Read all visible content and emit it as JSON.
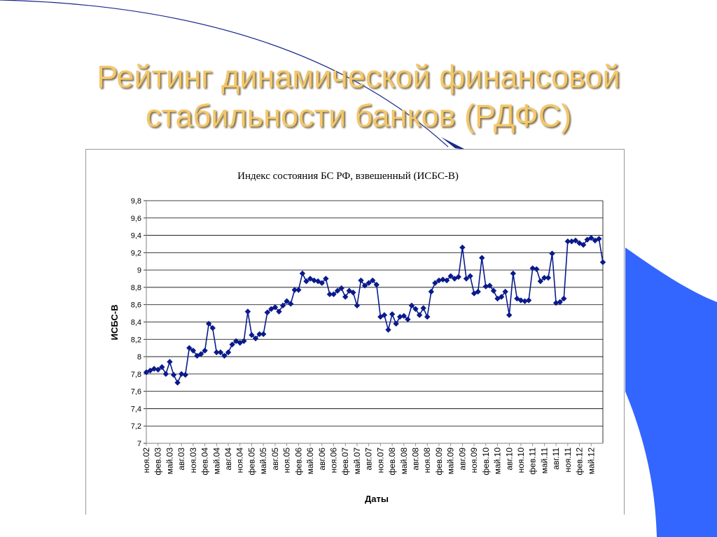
{
  "slide": {
    "title_line1": "Рейтинг динамической финансовой",
    "title_line2": "стабильности банков (РДФС)"
  },
  "colors": {
    "title": "#f3c76b",
    "accent_blue": "#3366ff",
    "series": "#0a1a8c"
  },
  "chart_data": {
    "type": "line",
    "title": "Индекс состояния БС РФ, взвешенный (ИСБС-В)",
    "xlabel": "Даты",
    "ylabel": "ИСБС-В",
    "ylim": [
      7,
      9.8
    ],
    "yticks": [
      "7",
      "7,2",
      "7,4",
      "7,6",
      "7,8",
      "8",
      "8,2",
      "8,4",
      "8,6",
      "8,8",
      "9",
      "9,2",
      "9,4",
      "9,6",
      "9,8"
    ],
    "ytick_values": [
      7,
      7.2,
      7.4,
      7.6,
      7.8,
      8,
      8.2,
      8.4,
      8.6,
      8.8,
      9,
      9.2,
      9.4,
      9.6,
      9.8
    ],
    "xticks": [
      "ноя.02",
      "фев.03",
      "май.03",
      "авг.03",
      "ноя.03",
      "фев.04",
      "май.04",
      "авг.04",
      "ноя.04",
      "фев.05",
      "май.05",
      "авг.05",
      "ноя.05",
      "фев.06",
      "май.06",
      "авг.06",
      "ноя.06",
      "фев.07",
      "май.07",
      "авг.07",
      "ноя.07",
      "фев.08",
      "май.08",
      "авг.08",
      "ноя.08",
      "фев.09",
      "май.09",
      "авг.09",
      "ноя.09",
      "фев.10",
      "май.10",
      "авг.10",
      "ноя.10",
      "фев.11",
      "май.11",
      "авг.11",
      "ноя.11",
      "фев.12",
      "май.12"
    ],
    "grid": true,
    "legend": "none",
    "marker": "diamond",
    "series": [
      {
        "values": [
          7.82,
          7.84,
          7.86,
          7.85,
          7.88,
          7.8,
          7.94,
          7.79,
          7.7,
          7.8,
          7.79,
          8.1,
          8.07,
          8.01,
          8.03,
          8.07,
          8.38,
          8.33,
          8.05,
          8.05,
          8.01,
          8.05,
          8.14,
          8.18,
          8.16,
          8.18,
          8.52,
          8.25,
          8.21,
          8.26,
          8.26,
          8.51,
          8.55,
          8.57,
          8.52,
          8.59,
          8.64,
          8.61,
          8.77,
          8.77,
          8.96,
          8.87,
          8.9,
          8.88,
          8.87,
          8.85,
          8.9,
          8.72,
          8.72,
          8.76,
          8.79,
          8.69,
          8.76,
          8.74,
          8.59,
          8.88,
          8.82,
          8.85,
          8.88,
          8.83,
          8.46,
          8.48,
          8.31,
          8.49,
          8.38,
          8.46,
          8.47,
          8.43,
          8.59,
          8.55,
          8.48,
          8.56,
          8.46,
          8.75,
          8.85,
          8.88,
          8.89,
          8.88,
          8.93,
          8.9,
          8.92,
          9.26,
          8.9,
          8.93,
          8.73,
          8.75,
          9.14,
          8.81,
          8.82,
          8.76,
          8.67,
          8.69,
          8.75,
          8.48,
          8.96,
          8.67,
          8.65,
          8.64,
          8.65,
          9.02,
          9.01,
          8.87,
          8.91,
          8.91,
          9.19,
          8.62,
          8.63,
          8.67,
          9.33,
          9.33,
          9.34,
          9.31,
          9.29,
          9.35,
          9.37,
          9.34,
          9.36,
          9.09
        ]
      }
    ]
  }
}
